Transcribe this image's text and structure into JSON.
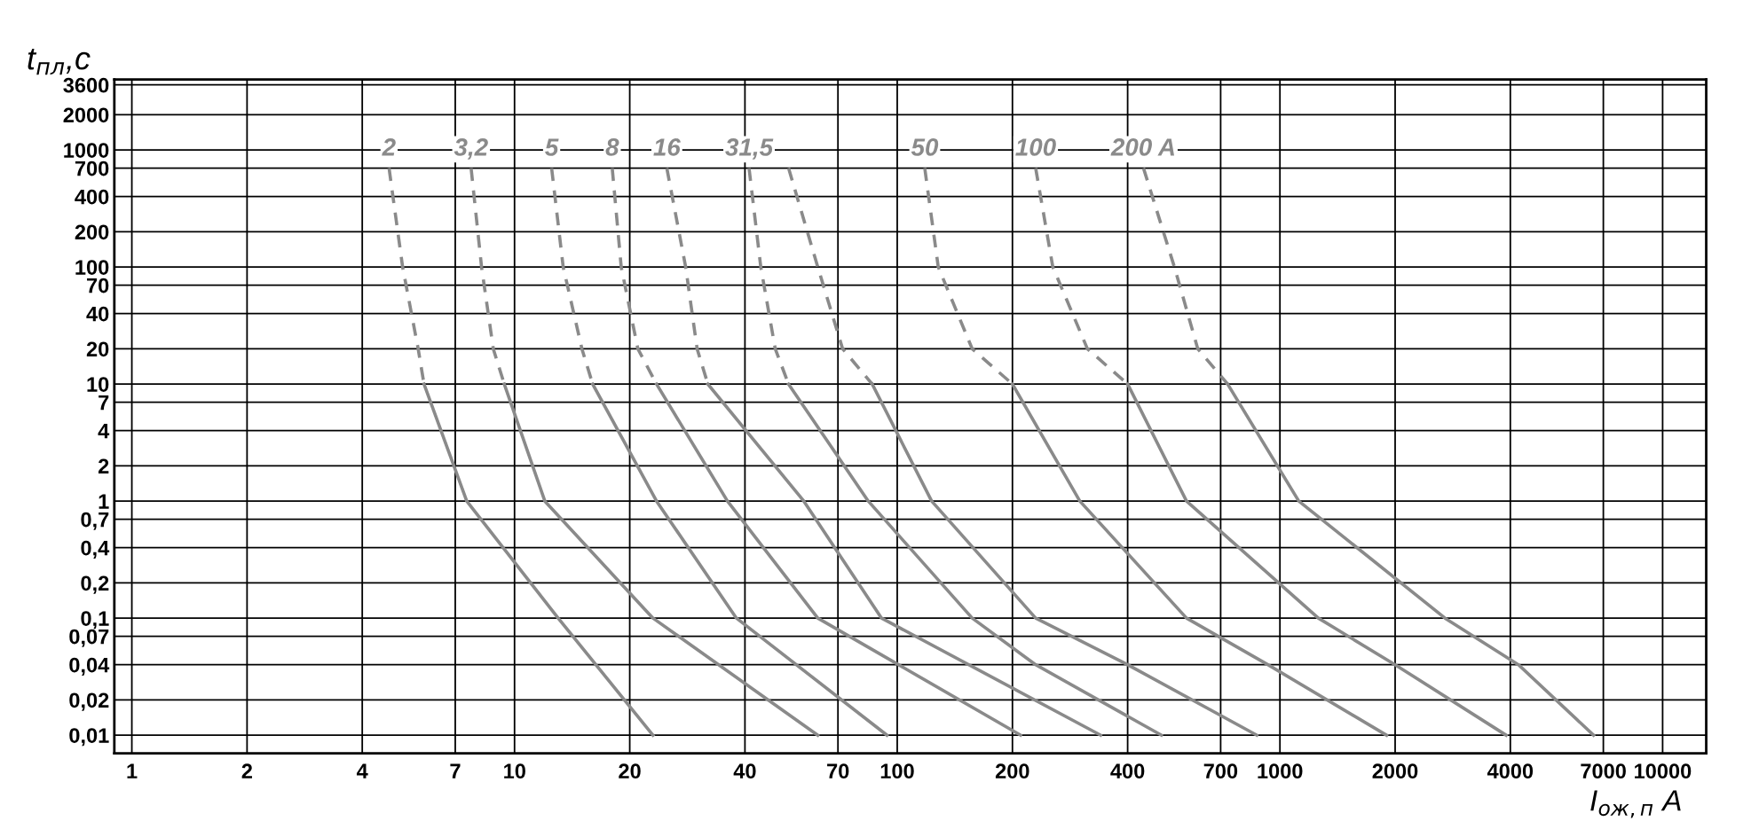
{
  "chart_data": {
    "type": "line",
    "ylabel": "t$_{пл}$,c",
    "xlabel": "I$_{ож,п}$ A",
    "log": "xy",
    "grid": true,
    "marker": "none",
    "xlim": [
      0.9,
      13000
    ],
    "ylim": [
      0.007,
      4000
    ],
    "xticks": [
      1,
      2,
      4,
      7,
      10,
      20,
      40,
      70,
      100,
      200,
      400,
      700,
      1000,
      2000,
      4000,
      7000,
      10000
    ],
    "yticks": [
      3600,
      2000,
      1000,
      {
        "value": 700,
        "label": "700"
      },
      400,
      200,
      100,
      70,
      40,
      20,
      10,
      7,
      4,
      2,
      1,
      {
        "value": 0.7,
        "label": "0,7"
      },
      {
        "value": 0.4,
        "label": "0,4"
      },
      {
        "value": 0.2,
        "label": "0,2"
      },
      {
        "value": 0.1,
        "label": "0,1"
      },
      {
        "value": 0.07,
        "label": "0,07"
      },
      {
        "value": 0.04,
        "label": "0,04"
      },
      {
        "value": 0.02,
        "label": "0,02"
      },
      {
        "value": 0.01,
        "label": "0,01"
      }
    ],
    "series": [
      {
        "name": "2",
        "color": "#8a8a8a",
        "line_style": "dashed",
        "x": [
          4.7,
          5.1,
          5.6,
          5.8
        ],
        "values": [
          700,
          100,
          20,
          10
        ]
      },
      {
        "color": "#8a8a8a",
        "line_style": "solid",
        "x": [
          5.8,
          7.5,
          13,
          23
        ],
        "values": [
          10,
          1,
          0.1,
          0.01
        ]
      },
      {
        "name": "3,2",
        "color": "#8a8a8a",
        "line_style": "dashed",
        "x": [
          7.7,
          8.2,
          8.8,
          9.4
        ],
        "values": [
          700,
          100,
          20,
          10
        ]
      },
      {
        "color": "#8a8a8a",
        "line_style": "solid",
        "x": [
          9.4,
          12,
          23,
          62
        ],
        "values": [
          10,
          1,
          0.1,
          0.01
        ]
      },
      {
        "name": "5",
        "color": "#8a8a8a",
        "line_style": "dashed",
        "x": [
          12.5,
          13.4,
          15,
          16
        ],
        "values": [
          700,
          100,
          20,
          10
        ]
      },
      {
        "color": "#8a8a8a",
        "line_style": "solid",
        "x": [
          16,
          23.5,
          38,
          94
        ],
        "values": [
          10,
          1,
          0.1,
          0.01
        ]
      },
      {
        "name": "8",
        "color": "#8a8a8a",
        "line_style": "dashed",
        "x": [
          18,
          19,
          21,
          23.5
        ],
        "values": [
          700,
          100,
          20,
          10
        ]
      },
      {
        "color": "#8a8a8a",
        "line_style": "solid",
        "x": [
          23.5,
          36,
          62,
          210
        ],
        "values": [
          10,
          1,
          0.1,
          0.01
        ]
      },
      {
        "name": "16",
        "color": "#8a8a8a",
        "line_style": "dashed",
        "x": [
          25,
          28,
          30,
          32
        ],
        "values": [
          700,
          100,
          20,
          10
        ]
      },
      {
        "color": "#8a8a8a",
        "line_style": "solid",
        "x": [
          32,
          57,
          91,
          340
        ],
        "values": [
          10,
          1,
          0.1,
          0.01
        ]
      },
      {
        "name": "31,5",
        "color": "#8a8a8a",
        "line_style": "dashed",
        "x": [
          41,
          44,
          48,
          52
        ],
        "values": [
          700,
          100,
          20,
          10
        ]
      },
      {
        "color": "#8a8a8a",
        "line_style": "solid",
        "x": [
          52,
          84,
          157,
          230,
          490
        ],
        "values": [
          10,
          1,
          0.1,
          0.04,
          0.01
        ]
      },
      {
        "color": "#8a8a8a",
        "line_style": "dashed",
        "x": [
          52,
          62,
          72,
          86
        ],
        "values": [
          700,
          100,
          20,
          10
        ]
      },
      {
        "color": "#8a8a8a",
        "line_style": "solid",
        "x": [
          86,
          123,
          230,
          400,
          870
        ],
        "values": [
          10,
          1,
          0.1,
          0.04,
          0.01
        ]
      },
      {
        "name": "50",
        "color": "#8a8a8a",
        "line_style": "dashed",
        "x": [
          118,
          128,
          157,
          200
        ],
        "values": [
          700,
          100,
          20,
          10
        ]
      },
      {
        "color": "#8a8a8a",
        "line_style": "solid",
        "x": [
          200,
          300,
          570,
          930,
          1900
        ],
        "values": [
          10,
          1,
          0.1,
          0.04,
          0.01
        ]
      },
      {
        "name": "100",
        "color": "#8a8a8a",
        "line_style": "dashed",
        "x": [
          230,
          255,
          314,
          400
        ],
        "values": [
          700,
          100,
          20,
          10
        ]
      },
      {
        "color": "#8a8a8a",
        "line_style": "solid",
        "x": [
          400,
          570,
          1260,
          2000,
          3900
        ],
        "values": [
          10,
          1,
          0.1,
          0.04,
          0.01
        ]
      },
      {
        "name": "200 A",
        "color": "#8a8a8a",
        "line_style": "dashed",
        "x": [
          440,
          530,
          610,
          730
        ],
        "values": [
          700,
          100,
          20,
          10
        ]
      },
      {
        "color": "#8a8a8a",
        "line_style": "solid",
        "x": [
          730,
          1120,
          2700,
          4200,
          6600
        ],
        "values": [
          10,
          1,
          0.1,
          0.04,
          0.01
        ]
      }
    ]
  }
}
